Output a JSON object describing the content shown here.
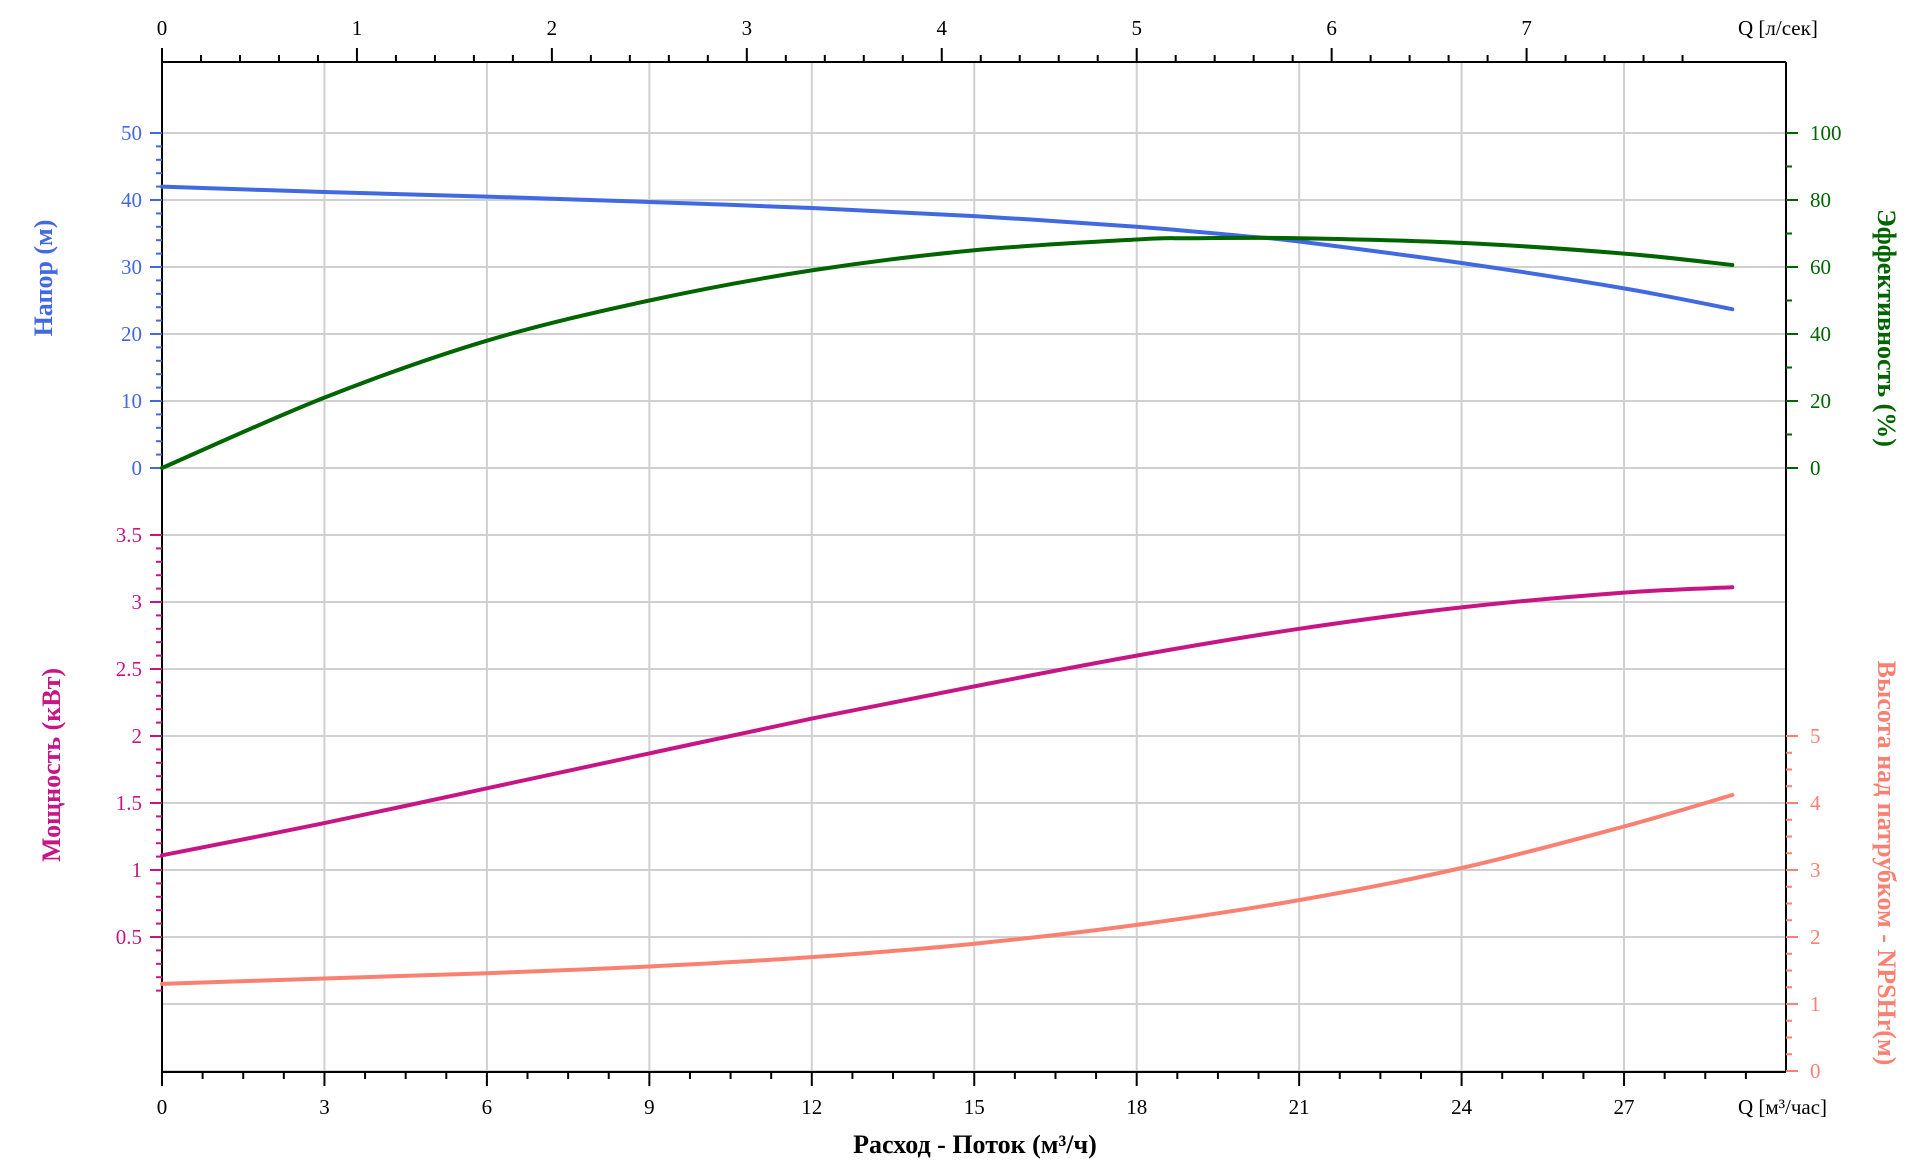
{
  "chart_data": {
    "type": "line",
    "x_axis": {
      "label": "Расход - Поток (м³/ч)",
      "unit": "Q [м³/час]",
      "range": [
        0,
        30
      ],
      "ticks": [
        0,
        3,
        6,
        9,
        12,
        15,
        18,
        21,
        24,
        27
      ]
    },
    "x_axis_top": {
      "unit": "Q [л/сек]",
      "range": [
        0,
        8.333
      ],
      "ticks": [
        0,
        1,
        2,
        3,
        4,
        5,
        6,
        7
      ]
    },
    "head_axis": {
      "label": "Напор (м)",
      "color": "#4169e1",
      "range": [
        0,
        50
      ],
      "ticks": [
        0,
        10,
        20,
        30,
        40,
        50
      ]
    },
    "efficiency_axis": {
      "label": "Эффективность (%)",
      "color": "#006400",
      "range": [
        0,
        100
      ],
      "ticks": [
        0,
        20,
        40,
        60,
        80,
        100
      ]
    },
    "power_axis": {
      "label": "Мощность (кВт)",
      "color": "#c71585",
      "range": [
        0,
        4
      ],
      "ticks": [
        "0.5",
        "1",
        "1.5",
        "2",
        "2.5",
        "3",
        "3.5"
      ]
    },
    "npsh_axis": {
      "label": "Высота над патрубком - NPSHr(м)",
      "color": "#fa8072",
      "range": [
        0,
        5
      ],
      "ticks": [
        0,
        1,
        2,
        3,
        4,
        5
      ]
    },
    "grid": true,
    "series": [
      {
        "axis": "head",
        "color": "#4169e1",
        "x": [
          0,
          3,
          6,
          9,
          12,
          15,
          18,
          20,
          21,
          24,
          27,
          29
        ],
        "y": [
          42,
          41.2,
          40.5,
          39.7,
          38.8,
          37.6,
          36,
          34.6,
          33.8,
          30.6,
          26.8,
          23.7
        ]
      },
      {
        "axis": "efficiency",
        "color": "#006400",
        "x": [
          0,
          3,
          6,
          9,
          12,
          15,
          18,
          19,
          21,
          24,
          27,
          29
        ],
        "y": [
          0,
          21,
          38,
          50,
          59,
          65,
          68.2,
          68.6,
          68.6,
          67.2,
          64,
          60.6
        ]
      },
      {
        "axis": "power",
        "color": "#c71585",
        "x": [
          0,
          3,
          6,
          9,
          12,
          15,
          18,
          21,
          24,
          27,
          29
        ],
        "y": [
          1.11,
          1.35,
          1.61,
          1.87,
          2.13,
          2.37,
          2.6,
          2.8,
          2.96,
          3.07,
          3.11
        ]
      },
      {
        "axis": "npsh",
        "color": "#fa8072",
        "x": [
          0,
          3,
          6,
          9,
          12,
          15,
          18,
          21,
          24,
          27,
          29
        ],
        "y": [
          1.3,
          1.38,
          1.46,
          1.56,
          1.7,
          1.9,
          2.18,
          2.55,
          3.03,
          3.65,
          4.12
        ]
      }
    ]
  }
}
